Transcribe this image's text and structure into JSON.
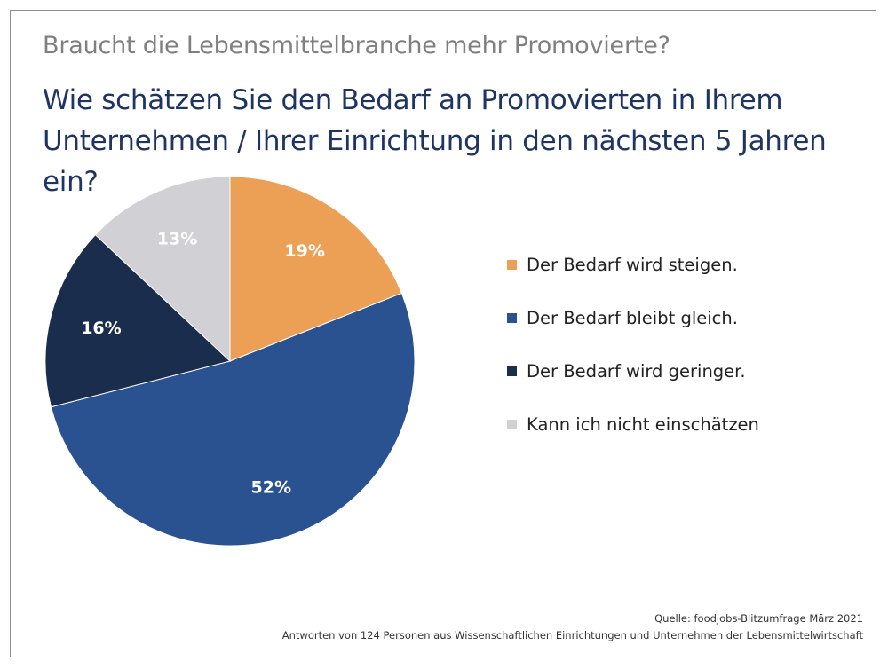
{
  "header": {
    "title": "Braucht die Lebensmittelbranche mehr Promovierte?",
    "subtitle": "Wie schätzen Sie den Bedarf an Promovierten in Ihrem Unternehmen / Ihrer Einrichtung in den nächsten 5 Jahren ein?"
  },
  "chart_data": {
    "type": "pie",
    "title": "Wie schätzen Sie den Bedarf an Promovierten in Ihrem Unternehmen / Ihrer Einrichtung in den nächsten 5 Jahren ein?",
    "categories": [
      "Der Bedarf wird steigen.",
      "Der Bedarf bleibt gleich.",
      "Der Bedarf wird geringer.",
      "Kann ich nicht einschätzen"
    ],
    "values": [
      19,
      52,
      16,
      13
    ],
    "labels": [
      "19%",
      "52%",
      "16%",
      "13%"
    ],
    "colors": [
      "#eca055",
      "#2a5190",
      "#1b2d4d",
      "#d1d0d5"
    ],
    "legend_position": "right"
  },
  "footer": {
    "source": "Quelle: foodjobs-Blitzumfrage März 2021",
    "note": "Antworten von 124 Personen aus Wissenschaftlichen Einrichtungen und Unternehmen der  Lebensmittelwirtschaft"
  }
}
